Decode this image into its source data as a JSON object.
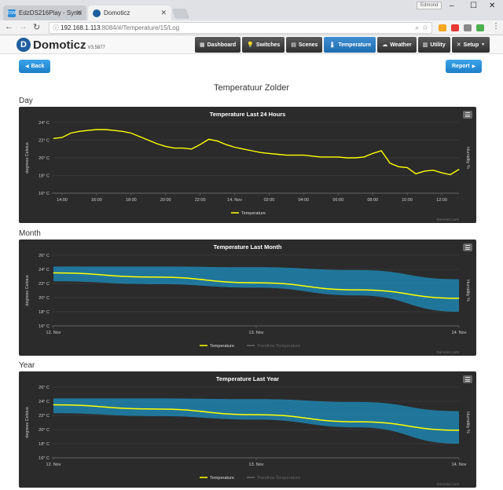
{
  "browser": {
    "tabs": [
      {
        "label": "EdzDS216Play - Synolog",
        "favicon": "DSM"
      },
      {
        "label": "Domoticz"
      }
    ],
    "user": "Edmond",
    "url_host": "192.168.1.113",
    "url_path": ":8084/#/Temperature/15/Log"
  },
  "app": {
    "name": "Domoticz",
    "version": "V3.5877",
    "nav": [
      {
        "label": "Dashboard",
        "icon": "▦"
      },
      {
        "label": "Switches",
        "icon": "💡"
      },
      {
        "label": "Scenes",
        "icon": "▤"
      },
      {
        "label": "Temperature",
        "icon": "🌡",
        "active": true
      },
      {
        "label": "Weather",
        "icon": "☁"
      },
      {
        "label": "Utility",
        "icon": "▥"
      },
      {
        "label": "Setup",
        "icon": "✕"
      }
    ]
  },
  "page": {
    "back_label": "Back",
    "report_label": "Report",
    "title": "Temperatuur Zolder",
    "sections": {
      "day": "Day",
      "month": "Month",
      "year": "Year"
    }
  },
  "chart_data": [
    {
      "type": "line",
      "title": "Temperature Last 24 Hours",
      "ylabel": "degrees Celsius",
      "ylabel_right": "Humidity %",
      "ylim": [
        16,
        24
      ],
      "yticks": [
        "24° C",
        "22° C",
        "20° C",
        "18° C",
        "16° C"
      ],
      "xticks": [
        "14:00",
        "16:00",
        "18:00",
        "20:00",
        "22:00",
        "14. Nov",
        "02:00",
        "04:00",
        "06:00",
        "08:00",
        "10:00",
        "12:00"
      ],
      "x_hours": [
        0,
        0.5,
        1,
        1.5,
        2,
        2.5,
        3,
        3.5,
        4,
        4.5,
        5,
        5.5,
        6,
        6.5,
        7,
        7.5,
        8,
        8.5,
        9,
        9.5,
        10,
        10.5,
        11,
        11.5,
        12,
        12.5,
        13,
        13.5,
        14,
        14.5,
        15,
        15.5,
        16,
        16.5,
        17,
        17.5,
        18,
        18.5,
        19,
        19.5,
        20,
        20.5,
        21,
        21.5,
        22,
        22.5,
        23,
        23.5
      ],
      "series": [
        {
          "name": "Temperature",
          "color": "#ffff00",
          "values": [
            22.2,
            22.3,
            22.8,
            23.0,
            23.1,
            23.2,
            23.2,
            23.1,
            23.0,
            22.8,
            22.4,
            22.0,
            21.6,
            21.3,
            21.1,
            21.1,
            21.0,
            21.5,
            22.1,
            21.9,
            21.5,
            21.2,
            21.0,
            20.8,
            20.6,
            20.5,
            20.4,
            20.3,
            20.3,
            20.3,
            20.2,
            20.1,
            20.1,
            20.1,
            20.0,
            20.0,
            20.1,
            20.5,
            20.8,
            19.4,
            19.0,
            18.9,
            18.2,
            18.5,
            18.6,
            18.3,
            18.1,
            18.7
          ]
        }
      ],
      "legend": [
        "Temperature"
      ],
      "credits": "Domoticz.com"
    },
    {
      "type": "area",
      "title": "Temperature Last Month",
      "ylabel": "degrees Celsius",
      "ylabel_right": "Humidity %",
      "ylim": [
        16,
        26
      ],
      "yticks": [
        "26° C",
        "24° C",
        "22° C",
        "20° C",
        "18° C",
        "16° C"
      ],
      "xticks": [
        "12. Nov",
        "13. Nov",
        "14. Nov"
      ],
      "x_days": [
        0,
        0.5,
        1,
        1.5,
        2
      ],
      "series": [
        {
          "name": "Temperature",
          "color": "#ffff00",
          "values": [
            23.5,
            22.9,
            22.1,
            21.1,
            19.9
          ]
        },
        {
          "name": "Range High",
          "color": "#1e90c0",
          "values": [
            24.4,
            24.4,
            24.3,
            23.9,
            22.6
          ]
        },
        {
          "name": "Range Low",
          "color": "#1e90c0",
          "values": [
            22.3,
            21.9,
            21.4,
            20.3,
            18.0
          ]
        }
      ],
      "legend": [
        "Temperature",
        "Trendline Temperature"
      ],
      "credits": "Domoticz.com"
    },
    {
      "type": "area",
      "title": "Temperature Last Year",
      "ylabel": "degrees Celsius",
      "ylabel_right": "Humidity %",
      "ylim": [
        16,
        26
      ],
      "yticks": [
        "26° C",
        "24° C",
        "22° C",
        "20° C",
        "18° C",
        "16° C"
      ],
      "xticks": [
        "12. Nov",
        "13. Nov",
        "14. Nov"
      ],
      "x_days": [
        0,
        0.5,
        1,
        1.5,
        2
      ],
      "series": [
        {
          "name": "Temperature",
          "color": "#ffff00",
          "values": [
            23.5,
            22.9,
            22.1,
            21.1,
            19.9
          ]
        },
        {
          "name": "Range High",
          "color": "#1e90c0",
          "values": [
            24.4,
            24.4,
            24.3,
            23.9,
            22.6
          ]
        },
        {
          "name": "Range Low",
          "color": "#1e90c0",
          "values": [
            22.3,
            21.9,
            21.4,
            20.3,
            18.0
          ]
        }
      ],
      "legend": [
        "Temperature",
        "Trendline Temperature"
      ],
      "credits": "Domoticz.com"
    }
  ]
}
